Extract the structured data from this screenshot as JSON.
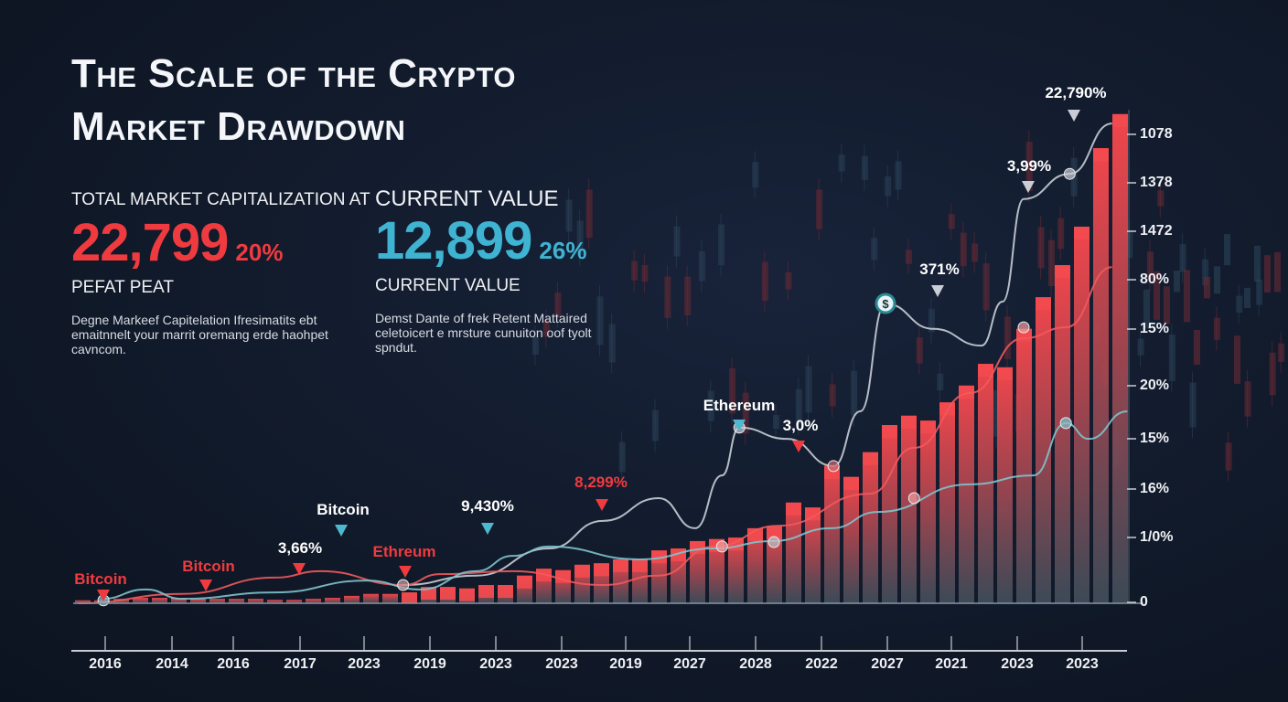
{
  "title": {
    "line1": "The Scale of the Crypto",
    "line2": "Market Drawdown"
  },
  "kpi_left": {
    "label": "TOTAL MARKET CAPITALIZATION AT",
    "value": "22,799",
    "pct": "20%",
    "sublabel": "PEFAT PEAT",
    "description": "Degne Markeef Capitelation Ifresimatits ebt emaitnnelt your marrit oremang erde haohpet cavncom.",
    "value_color": "#ef3b3f"
  },
  "kpi_right": {
    "label": "CURRENT VALUE",
    "value": "12,899",
    "pct": "26%",
    "sublabel": "CURRENT VALUE",
    "description": "Demst Dante of frek Retent Mattaired celetoicert e mrsture cunuiton oof tyolt spndut.",
    "value_color": "#3fb4d2"
  },
  "chart_data": {
    "type": "bar",
    "xlabel": "",
    "ylabel": "",
    "grid": false,
    "x_tick_labels": [
      "2016",
      "2014",
      "2016",
      "2017",
      "2023",
      "2019",
      "2023",
      "2023",
      "2019",
      "2027",
      "2028",
      "2022",
      "2027",
      "2021",
      "2023",
      "2023"
    ],
    "y_tick_labels": [
      "1078",
      "1378",
      "1472",
      "80%",
      "15%",
      "20%",
      "15%",
      "16%",
      "1/0%",
      "0"
    ],
    "ylim_note_units": "percent of axis height",
    "ylim": [
      0,
      100
    ],
    "bars": [
      0.6,
      0.6,
      0.9,
      1.1,
      1.1,
      1.1,
      0.9,
      0.9,
      0.9,
      0.9,
      0.7,
      0.7,
      0.9,
      1.1,
      1.5,
      1.9,
      1.9,
      2.2,
      3.3,
      3.3,
      3,
      3.7,
      3.7,
      5.6,
      7,
      6.7,
      7.8,
      8.1,
      8.9,
      8.9,
      10.7,
      11.1,
      12.6,
      13,
      13.3,
      15.2,
      15.6,
      20.4,
      19.4,
      27.8,
      25.6,
      30.6,
      36.1,
      38,
      37,
      40.7,
      44.1,
      48.5,
      47.8,
      55.6,
      62,
      68.5,
      76.3,
      92.2,
      99.1
    ],
    "series": [
      {
        "color": "#c9ced6",
        "points": [
          [
            16.7,
            3.7
          ],
          [
            20.5,
            5.6
          ],
          [
            24.3,
            11.1
          ],
          [
            27.1,
            16.7
          ],
          [
            30,
            21.3
          ],
          [
            31.9,
            15.2
          ],
          [
            33.3,
            25.9
          ],
          [
            34.2,
            35.6
          ],
          [
            36.7,
            33.3
          ],
          [
            39.1,
            27.8
          ],
          [
            40.5,
            38.9
          ],
          [
            41.8,
            60.7
          ],
          [
            44.3,
            55.6
          ],
          [
            46.8,
            52.2
          ],
          [
            47.9,
            61.1
          ],
          [
            49,
            81.9
          ],
          [
            51.4,
            87
          ],
          [
            53.6,
            97.2
          ]
        ]
      },
      {
        "color": "#f05a5e",
        "points": [
          [
            -0.2,
            0
          ],
          [
            5.2,
            1.9
          ],
          [
            10,
            5.2
          ],
          [
            12.4,
            6.5
          ],
          [
            16.7,
            3.7
          ],
          [
            18.6,
            5.9
          ],
          [
            22.4,
            6.5
          ],
          [
            27.1,
            3.7
          ],
          [
            30,
            5.6
          ],
          [
            32.9,
            11.5
          ],
          [
            36.2,
            15.7
          ],
          [
            41,
            22.2
          ],
          [
            43.3,
            31.5
          ],
          [
            46.2,
            42.6
          ],
          [
            49,
            53.7
          ],
          [
            51.2,
            55.9
          ],
          [
            53.6,
            68.1
          ]
        ]
      },
      {
        "color": "#7fc3cc",
        "points": [
          [
            1,
            0.9
          ],
          [
            3.3,
            2.8
          ],
          [
            5.2,
            0.9
          ],
          [
            10,
            2.2
          ],
          [
            14.8,
            4.6
          ],
          [
            17.6,
            2.8
          ],
          [
            20.5,
            6.5
          ],
          [
            22.4,
            9.6
          ],
          [
            24.3,
            11.5
          ],
          [
            29,
            8.9
          ],
          [
            32.9,
            11.1
          ],
          [
            35.9,
            12.6
          ],
          [
            39,
            15.2
          ],
          [
            41.4,
            18.5
          ],
          [
            46.2,
            24.1
          ],
          [
            49.5,
            25.9
          ],
          [
            51.2,
            36.5
          ],
          [
            52.4,
            33.3
          ],
          [
            54.4,
            38.9
          ]
        ]
      }
    ],
    "annotations": [
      {
        "text": "Bitcoin",
        "color": "#ef3b3f",
        "marker": "#ef3b3f"
      },
      {
        "text": "Bitcoin",
        "color": "#ef3b3f",
        "marker": "#ef3b3f"
      },
      {
        "text": "3,66%",
        "color": "#ffffff",
        "marker": "#ef3b3f"
      },
      {
        "text": "Bitcoin",
        "color": "#ffffff",
        "marker": "#4fb7cf"
      },
      {
        "text": "Ethreum",
        "color": "#ef3b3f",
        "marker": "#ef3b3f"
      },
      {
        "text": "9,430%",
        "color": "#ffffff",
        "marker": "#4fb7cf"
      },
      {
        "text": "8,299%",
        "color": "#ef3b3f",
        "marker": "#ef3b3f"
      },
      {
        "text": "Ethereum",
        "color": "#ffffff",
        "marker": "#4fb7cf"
      },
      {
        "text": "3,0%",
        "color": "#ffffff",
        "marker": "#ef3b3f"
      },
      {
        "text": "371%",
        "color": "#ffffff",
        "marker": "#c9ced6"
      },
      {
        "text": "3,99%",
        "color": "#ffffff",
        "marker": "#c9ced6"
      },
      {
        "text": "22,790%",
        "color": "#ffffff",
        "marker": "#c9ced6"
      }
    ],
    "icons": [
      "dollar-icon"
    ]
  }
}
